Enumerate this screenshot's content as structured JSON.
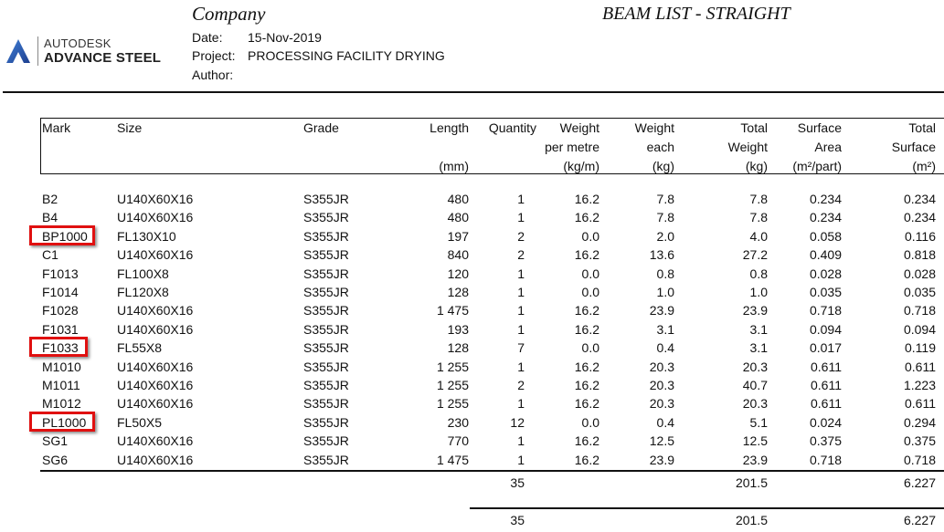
{
  "logo": {
    "line1": "AUTODESK",
    "line2": "ADVANCE STEEL",
    "color": "#2a5caa"
  },
  "header": {
    "company": "Company",
    "title": "BEAM LIST - STRAIGHT",
    "date_label": "Date:",
    "date_value": "15-Nov-2019",
    "project_label": "Project:",
    "project_value": "PROCESSING FACILITY DRYING",
    "author_label": "Author:",
    "author_value": ""
  },
  "table": {
    "columns": [
      {
        "key": "mark",
        "lines": [
          "Mark",
          "",
          ""
        ]
      },
      {
        "key": "size",
        "lines": [
          "Size",
          "",
          ""
        ]
      },
      {
        "key": "grade",
        "lines": [
          "Grade",
          "",
          ""
        ]
      },
      {
        "key": "length",
        "lines": [
          "Length",
          "",
          "(mm)"
        ]
      },
      {
        "key": "quantity",
        "lines": [
          "Quantity",
          "",
          ""
        ]
      },
      {
        "key": "weight_per_metre",
        "lines": [
          "Weight",
          "per metre",
          "(kg/m)"
        ]
      },
      {
        "key": "weight_each",
        "lines": [
          "Weight",
          "each",
          "(kg)"
        ]
      },
      {
        "key": "total_weight",
        "lines": [
          "Total",
          "Weight",
          "(kg)"
        ]
      },
      {
        "key": "surface_area",
        "lines": [
          "Surface",
          "Area",
          "(m²/part)"
        ]
      },
      {
        "key": "total_surface",
        "lines": [
          "Total",
          "Surface",
          "(m²)"
        ]
      }
    ],
    "rows": [
      {
        "mark": "B2",
        "size": "U140X60X16",
        "grade": "S355JR",
        "length": "480",
        "quantity": "1",
        "weight_per_metre": "16.2",
        "weight_each": "7.8",
        "total_weight": "7.8",
        "surface_area": "0.234",
        "total_surface": "0.234",
        "highlighted": false
      },
      {
        "mark": "B4",
        "size": "U140X60X16",
        "grade": "S355JR",
        "length": "480",
        "quantity": "1",
        "weight_per_metre": "16.2",
        "weight_each": "7.8",
        "total_weight": "7.8",
        "surface_area": "0.234",
        "total_surface": "0.234",
        "highlighted": false
      },
      {
        "mark": "BP1000",
        "size": "FL130X10",
        "grade": "S355JR",
        "length": "197",
        "quantity": "2",
        "weight_per_metre": "0.0",
        "weight_each": "2.0",
        "total_weight": "4.0",
        "surface_area": "0.058",
        "total_surface": "0.116",
        "highlighted": true
      },
      {
        "mark": "C1",
        "size": "U140X60X16",
        "grade": "S355JR",
        "length": "840",
        "quantity": "2",
        "weight_per_metre": "16.2",
        "weight_each": "13.6",
        "total_weight": "27.2",
        "surface_area": "0.409",
        "total_surface": "0.818",
        "highlighted": false
      },
      {
        "mark": "F1013",
        "size": "FL100X8",
        "grade": "S355JR",
        "length": "120",
        "quantity": "1",
        "weight_per_metre": "0.0",
        "weight_each": "0.8",
        "total_weight": "0.8",
        "surface_area": "0.028",
        "total_surface": "0.028",
        "highlighted": false
      },
      {
        "mark": "F1014",
        "size": "FL120X8",
        "grade": "S355JR",
        "length": "128",
        "quantity": "1",
        "weight_per_metre": "0.0",
        "weight_each": "1.0",
        "total_weight": "1.0",
        "surface_area": "0.035",
        "total_surface": "0.035",
        "highlighted": false
      },
      {
        "mark": "F1028",
        "size": "U140X60X16",
        "grade": "S355JR",
        "length": "1 475",
        "quantity": "1",
        "weight_per_metre": "16.2",
        "weight_each": "23.9",
        "total_weight": "23.9",
        "surface_area": "0.718",
        "total_surface": "0.718",
        "highlighted": false
      },
      {
        "mark": "F1031",
        "size": "U140X60X16",
        "grade": "S355JR",
        "length": "193",
        "quantity": "1",
        "weight_per_metre": "16.2",
        "weight_each": "3.1",
        "total_weight": "3.1",
        "surface_area": "0.094",
        "total_surface": "0.094",
        "highlighted": false
      },
      {
        "mark": "F1033",
        "size": "FL55X8",
        "grade": "S355JR",
        "length": "128",
        "quantity": "7",
        "weight_per_metre": "0.0",
        "weight_each": "0.4",
        "total_weight": "3.1",
        "surface_area": "0.017",
        "total_surface": "0.119",
        "highlighted": true
      },
      {
        "mark": "M1010",
        "size": "U140X60X16",
        "grade": "S355JR",
        "length": "1 255",
        "quantity": "1",
        "weight_per_metre": "16.2",
        "weight_each": "20.3",
        "total_weight": "20.3",
        "surface_area": "0.611",
        "total_surface": "0.611",
        "highlighted": false
      },
      {
        "mark": "M1011",
        "size": "U140X60X16",
        "grade": "S355JR",
        "length": "1 255",
        "quantity": "2",
        "weight_per_metre": "16.2",
        "weight_each": "20.3",
        "total_weight": "40.7",
        "surface_area": "0.611",
        "total_surface": "1.223",
        "highlighted": false
      },
      {
        "mark": "M1012",
        "size": "U140X60X16",
        "grade": "S355JR",
        "length": "1 255",
        "quantity": "1",
        "weight_per_metre": "16.2",
        "weight_each": "20.3",
        "total_weight": "20.3",
        "surface_area": "0.611",
        "total_surface": "0.611",
        "highlighted": false
      },
      {
        "mark": "PL1000",
        "size": "FL50X5",
        "grade": "S355JR",
        "length": "230",
        "quantity": "12",
        "weight_per_metre": "0.0",
        "weight_each": "0.4",
        "total_weight": "5.1",
        "surface_area": "0.024",
        "total_surface": "0.294",
        "highlighted": true
      },
      {
        "mark": "SG1",
        "size": "U140X60X16",
        "grade": "S355JR",
        "length": "770",
        "quantity": "1",
        "weight_per_metre": "16.2",
        "weight_each": "12.5",
        "total_weight": "12.5",
        "surface_area": "0.375",
        "total_surface": "0.375",
        "highlighted": false
      },
      {
        "mark": "SG6",
        "size": "U140X60X16",
        "grade": "S355JR",
        "length": "1 475",
        "quantity": "1",
        "weight_per_metre": "16.2",
        "weight_each": "23.9",
        "total_weight": "23.9",
        "surface_area": "0.718",
        "total_surface": "0.718",
        "highlighted": false
      }
    ],
    "subtotal": {
      "quantity": "35",
      "total_weight": "201.5",
      "total_surface": "6.227"
    },
    "grand_total": {
      "quantity": "35",
      "total_weight": "201.5",
      "total_surface": "6.227"
    },
    "highlight_color": "#e01010"
  }
}
